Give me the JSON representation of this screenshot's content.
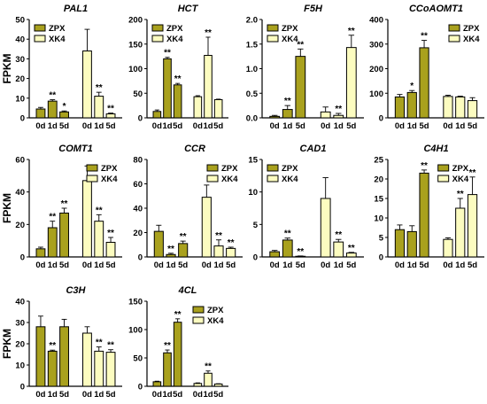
{
  "y_axis_label": "FPKM",
  "colors": {
    "zpx": "#a9a11e",
    "xk4": "#fcfcc0",
    "stroke": "#000000"
  },
  "chart_data": [
    {
      "type": "bar",
      "title": "PAL1",
      "ylim": [
        0,
        50
      ],
      "yticks": [
        0,
        10,
        20,
        30,
        40,
        50
      ],
      "categories": [
        "0d",
        "1d",
        "5d"
      ],
      "legend_position": "top-left",
      "series": [
        {
          "name": "ZPX",
          "values": [
            4.5,
            8.5,
            3
          ],
          "errors": [
            0.8,
            0.7,
            0.5
          ],
          "sig": [
            "",
            "**",
            "*"
          ]
        },
        {
          "name": "XK4",
          "values": [
            34,
            11,
            2
          ],
          "errors": [
            11,
            2,
            0.4
          ],
          "sig": [
            "",
            "**",
            "**"
          ]
        }
      ]
    },
    {
      "type": "bar",
      "title": "HCT",
      "ylim": [
        0,
        200
      ],
      "yticks": [
        0,
        50,
        100,
        150,
        200
      ],
      "categories": [
        "0d",
        "1d",
        "5d"
      ],
      "legend_position": "top-left",
      "series": [
        {
          "name": "ZPX",
          "values": [
            13,
            120,
            67
          ],
          "errors": [
            3,
            3,
            3
          ],
          "sig": [
            "",
            "**",
            "**"
          ]
        },
        {
          "name": "XK4",
          "values": [
            43,
            127,
            37
          ],
          "errors": [
            2,
            37,
            1
          ],
          "sig": [
            "",
            "**",
            ""
          ]
        }
      ]
    },
    {
      "type": "bar",
      "title": "F5H",
      "ylim": [
        0,
        2.0
      ],
      "yticks": [
        0.0,
        0.5,
        1.0,
        1.5,
        2.0
      ],
      "categories": [
        "0d",
        "1d",
        "5d"
      ],
      "legend_position": "top-left",
      "series": [
        {
          "name": "ZPX",
          "values": [
            0.03,
            0.17,
            1.25
          ],
          "errors": [
            0.02,
            0.08,
            0.15
          ],
          "sig": [
            "",
            "**",
            "**"
          ]
        },
        {
          "name": "XK4",
          "values": [
            0.12,
            0.05,
            1.43
          ],
          "errors": [
            0.1,
            0.04,
            0.25
          ],
          "sig": [
            "",
            "**",
            "**"
          ]
        }
      ]
    },
    {
      "type": "bar",
      "title": "CCoAOMT1",
      "ylim": [
        0,
        400
      ],
      "yticks": [
        0,
        100,
        200,
        300,
        400
      ],
      "categories": [
        "0d",
        "1d",
        "5d"
      ],
      "legend_position": "top-right",
      "series": [
        {
          "name": "ZPX",
          "values": [
            85,
            103,
            285
          ],
          "errors": [
            10,
            8,
            30
          ],
          "sig": [
            "",
            "*",
            "**"
          ]
        },
        {
          "name": "XK4",
          "values": [
            87,
            85,
            70
          ],
          "errors": [
            5,
            3,
            12
          ],
          "sig": [
            "",
            "",
            ""
          ]
        }
      ]
    },
    {
      "type": "bar",
      "title": "COMT1",
      "ylim": [
        0,
        60
      ],
      "yticks": [
        0,
        20,
        40,
        60
      ],
      "categories": [
        "0d",
        "1d",
        "5d"
      ],
      "legend_position": "top-right",
      "series": [
        {
          "name": "ZPX",
          "values": [
            5,
            18,
            27
          ],
          "errors": [
            1,
            4,
            3
          ],
          "sig": [
            "",
            "**",
            "**"
          ]
        },
        {
          "name": "XK4",
          "values": [
            47,
            22,
            9
          ],
          "errors": [
            9,
            4,
            3
          ],
          "sig": [
            "",
            "**",
            "**"
          ]
        }
      ]
    },
    {
      "type": "bar",
      "title": "CCR",
      "ylim": [
        0,
        80
      ],
      "yticks": [
        0,
        20,
        40,
        60,
        80
      ],
      "categories": [
        "0d",
        "1d",
        "5d"
      ],
      "legend_position": "top-right",
      "series": [
        {
          "name": "ZPX",
          "values": [
            21,
            2,
            11
          ],
          "errors": [
            5,
            1,
            2
          ],
          "sig": [
            "",
            "**",
            "**"
          ]
        },
        {
          "name": "XK4",
          "values": [
            49,
            9,
            7
          ],
          "errors": [
            10,
            5,
            1
          ],
          "sig": [
            "",
            "**",
            "**"
          ]
        }
      ]
    },
    {
      "type": "bar",
      "title": "CAD1",
      "ylim": [
        0,
        15
      ],
      "yticks": [
        0,
        5,
        10,
        15
      ],
      "categories": [
        "0d",
        "1d",
        "5d"
      ],
      "legend_position": "top-left",
      "series": [
        {
          "name": "ZPX",
          "values": [
            0.8,
            2.6,
            0.1
          ],
          "errors": [
            0.2,
            0.3,
            0.05
          ],
          "sig": [
            "",
            "**",
            "**"
          ]
        },
        {
          "name": "XK4",
          "values": [
            9,
            2.3,
            0.6
          ],
          "errors": [
            3.2,
            0.4,
            0.1
          ],
          "sig": [
            "",
            "**",
            "**"
          ]
        }
      ]
    },
    {
      "type": "bar",
      "title": "C4H1",
      "ylim": [
        0,
        25
      ],
      "yticks": [
        0,
        5,
        10,
        15,
        20,
        25
      ],
      "categories": [
        "0d",
        "1d",
        "5d"
      ],
      "legend_position": "top-center",
      "series": [
        {
          "name": "ZPX",
          "values": [
            7,
            6.5,
            21.5
          ],
          "errors": [
            1.2,
            1.5,
            0.8
          ],
          "sig": [
            "",
            "",
            "**"
          ]
        },
        {
          "name": "XK4",
          "values": [
            4.5,
            12.5,
            16
          ],
          "errors": [
            0.4,
            2.5,
            4.5
          ],
          "sig": [
            "",
            "**",
            "**"
          ]
        }
      ]
    },
    {
      "type": "bar",
      "title": "C3H",
      "ylim": [
        0,
        40
      ],
      "yticks": [
        0,
        10,
        20,
        30,
        40
      ],
      "categories": [
        "0d",
        "1d",
        "5d"
      ],
      "legend_position": "none",
      "series": [
        {
          "name": "ZPX",
          "values": [
            28,
            16.5,
            28
          ],
          "errors": [
            5,
            0.5,
            3.5
          ],
          "sig": [
            "",
            "**",
            ""
          ]
        },
        {
          "name": "XK4",
          "values": [
            25,
            16.5,
            16
          ],
          "errors": [
            3,
            2,
            1.2
          ],
          "sig": [
            "",
            "**",
            "**"
          ]
        }
      ]
    },
    {
      "type": "bar",
      "title": "4CL",
      "ylim": [
        0,
        150
      ],
      "yticks": [
        0,
        50,
        100,
        150
      ],
      "categories": [
        "0d",
        "1d",
        "5d"
      ],
      "legend_position": "top-right",
      "series": [
        {
          "name": "ZPX",
          "values": [
            8,
            59,
            113
          ],
          "errors": [
            1,
            5,
            6
          ],
          "sig": [
            "",
            "**",
            "**"
          ]
        },
        {
          "name": "XK4",
          "values": [
            5,
            23,
            4
          ],
          "errors": [
            1,
            4,
            0.5
          ],
          "sig": [
            "",
            "**",
            ""
          ]
        }
      ]
    }
  ]
}
